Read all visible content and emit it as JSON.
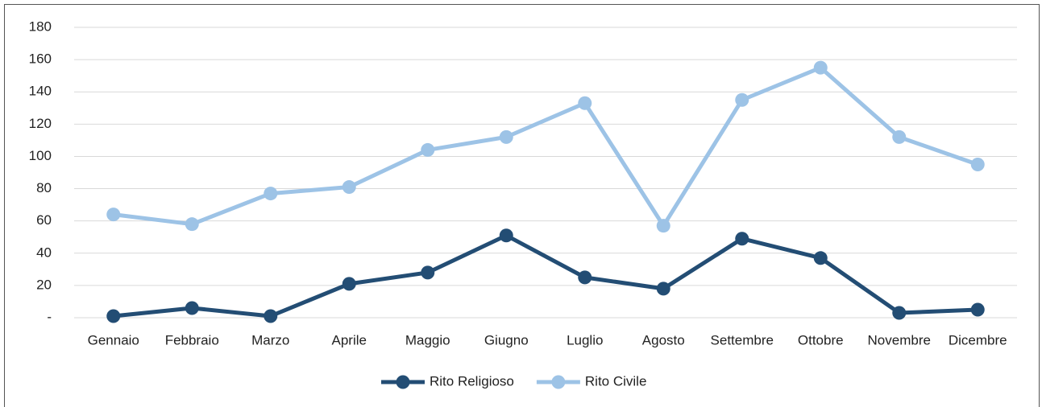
{
  "chart_data": {
    "type": "line",
    "categories": [
      "Gennaio",
      "Febbraio",
      "Marzo",
      "Aprile",
      "Maggio",
      "Giugno",
      "Luglio",
      "Agosto",
      "Settembre",
      "Ottobre",
      "Novembre",
      "Dicembre"
    ],
    "series": [
      {
        "name": "Rito Religioso",
        "color": "#234d74",
        "values": [
          1,
          6,
          1,
          21,
          28,
          51,
          25,
          18,
          49,
          37,
          3,
          5
        ]
      },
      {
        "name": "Rito Civile",
        "color": "#9dc3e6",
        "values": [
          64,
          58,
          77,
          81,
          104,
          112,
          133,
          57,
          135,
          155,
          112,
          95
        ]
      }
    ],
    "ylim": [
      0,
      180
    ],
    "yticks": [
      {
        "value": 0,
        "label": "-"
      },
      20,
      40,
      60,
      80,
      100,
      120,
      140,
      160,
      180
    ],
    "grid": true,
    "legend": "bottom"
  }
}
